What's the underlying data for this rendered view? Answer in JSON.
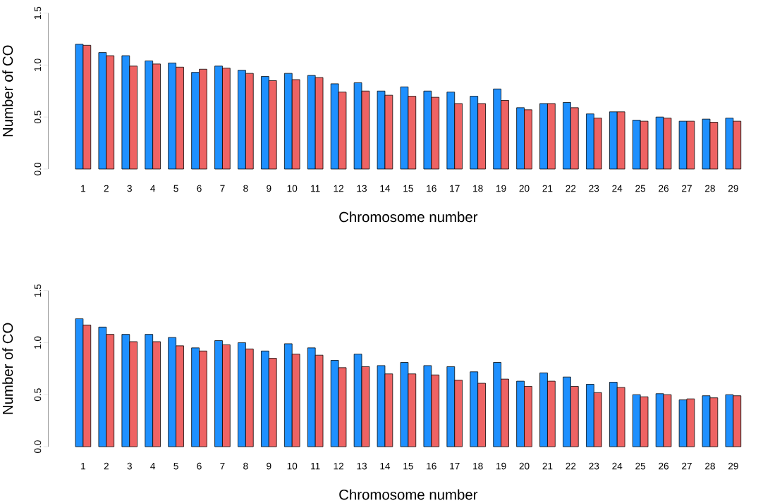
{
  "chart_data": [
    {
      "type": "bar",
      "xlabel": "Chromosome number",
      "ylabel": "Number of CO",
      "categories": [
        "1",
        "2",
        "3",
        "4",
        "5",
        "6",
        "7",
        "8",
        "9",
        "10",
        "11",
        "12",
        "13",
        "14",
        "15",
        "16",
        "17",
        "18",
        "19",
        "20",
        "21",
        "22",
        "23",
        "24",
        "25",
        "26",
        "27",
        "28",
        "29"
      ],
      "series": [
        {
          "color": "#1e90ff",
          "values": [
            1.2,
            1.12,
            1.09,
            1.04,
            1.02,
            0.93,
            0.99,
            0.95,
            0.89,
            0.92,
            0.9,
            0.82,
            0.83,
            0.75,
            0.79,
            0.75,
            0.74,
            0.7,
            0.77,
            0.59,
            0.63,
            0.64,
            0.53,
            0.55,
            0.47,
            0.5,
            0.46,
            0.48,
            0.49
          ]
        },
        {
          "color": "#ee6363",
          "values": [
            1.19,
            1.09,
            0.99,
            1.01,
            0.98,
            0.96,
            0.97,
            0.92,
            0.85,
            0.86,
            0.88,
            0.74,
            0.75,
            0.71,
            0.7,
            0.69,
            0.63,
            0.63,
            0.66,
            0.57,
            0.63,
            0.59,
            0.49,
            0.55,
            0.46,
            0.49,
            0.46,
            0.45,
            0.46
          ]
        }
      ],
      "ylim": [
        0,
        1.5
      ],
      "yticks": [
        {
          "value": 0,
          "label": "0.0"
        },
        {
          "value": 0.5,
          "label": "0.5"
        },
        {
          "value": 1,
          "label": "1.0"
        },
        {
          "value": 1.5,
          "label": "1.5"
        }
      ]
    },
    {
      "type": "bar",
      "xlabel": "Chromosome number",
      "ylabel": "Number of CO",
      "categories": [
        "1",
        "2",
        "3",
        "4",
        "5",
        "6",
        "7",
        "8",
        "9",
        "10",
        "11",
        "12",
        "13",
        "14",
        "15",
        "16",
        "17",
        "18",
        "19",
        "20",
        "21",
        "22",
        "23",
        "24",
        "25",
        "26",
        "27",
        "28",
        "29"
      ],
      "series": [
        {
          "color": "#1e90ff",
          "values": [
            1.23,
            1.15,
            1.08,
            1.08,
            1.05,
            0.95,
            1.02,
            1.0,
            0.92,
            0.99,
            0.95,
            0.83,
            0.89,
            0.78,
            0.81,
            0.78,
            0.77,
            0.72,
            0.81,
            0.63,
            0.71,
            0.67,
            0.6,
            0.62,
            0.5,
            0.51,
            0.45,
            0.49,
            0.5
          ]
        },
        {
          "color": "#ee6363",
          "values": [
            1.17,
            1.08,
            1.01,
            1.01,
            0.97,
            0.92,
            0.98,
            0.94,
            0.85,
            0.89,
            0.88,
            0.76,
            0.77,
            0.7,
            0.7,
            0.69,
            0.64,
            0.61,
            0.65,
            0.58,
            0.63,
            0.58,
            0.52,
            0.57,
            0.48,
            0.5,
            0.46,
            0.47,
            0.49
          ]
        }
      ],
      "ylim": [
        0,
        1.5
      ],
      "yticks": [
        {
          "value": 0,
          "label": "0.0"
        },
        {
          "value": 0.5,
          "label": "0.5"
        },
        {
          "value": 1,
          "label": "1.0"
        },
        {
          "value": 1.5,
          "label": "1.5"
        }
      ]
    }
  ]
}
